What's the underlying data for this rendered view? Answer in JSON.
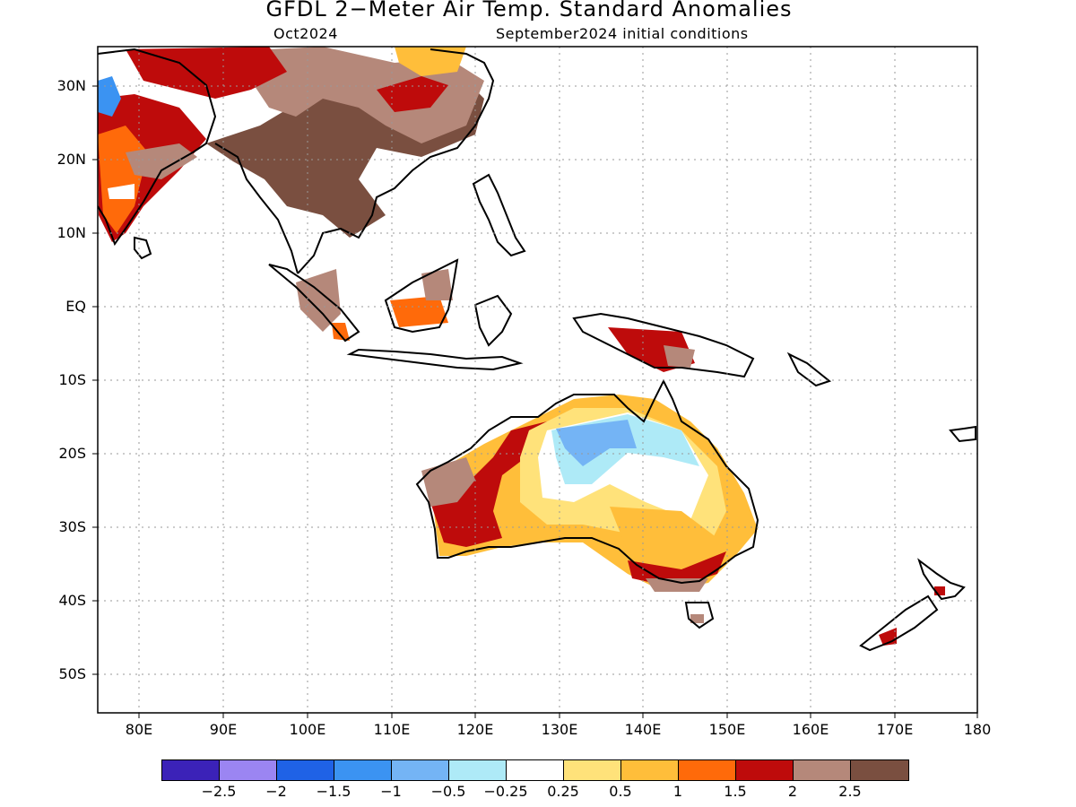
{
  "title": "GFDL 2−Meter Air Temp. Standard Anomalies",
  "subtitle_left": "Oct2024",
  "subtitle_right": "September2024 initial conditions",
  "lat_labels": [
    "30N",
    "20N",
    "10N",
    "EQ",
    "10S",
    "20S",
    "30S",
    "40S",
    "50S"
  ],
  "lon_labels": [
    "80E",
    "90E",
    "100E",
    "110E",
    "120E",
    "130E",
    "140E",
    "150E",
    "160E",
    "170E",
    "180"
  ],
  "colorbar": {
    "colors": [
      "#3b22b8",
      "#9b85f2",
      "#1f62e6",
      "#3b93f2",
      "#74b4f5",
      "#aeeaf7",
      "#ffffff",
      "#ffe27a",
      "#ffbe3a",
      "#ff6a0a",
      "#be0b0b",
      "#b5887a",
      "#7a4f40"
    ],
    "labels": [
      "−2.5",
      "−2",
      "−1.5",
      "−1",
      "−0.5",
      "−0.25",
      "0.25",
      "0.5",
      "1",
      "1.5",
      "2",
      "2.5"
    ]
  },
  "map_extent": {
    "lon": [
      75,
      180
    ],
    "lat": [
      -55,
      35
    ]
  }
}
